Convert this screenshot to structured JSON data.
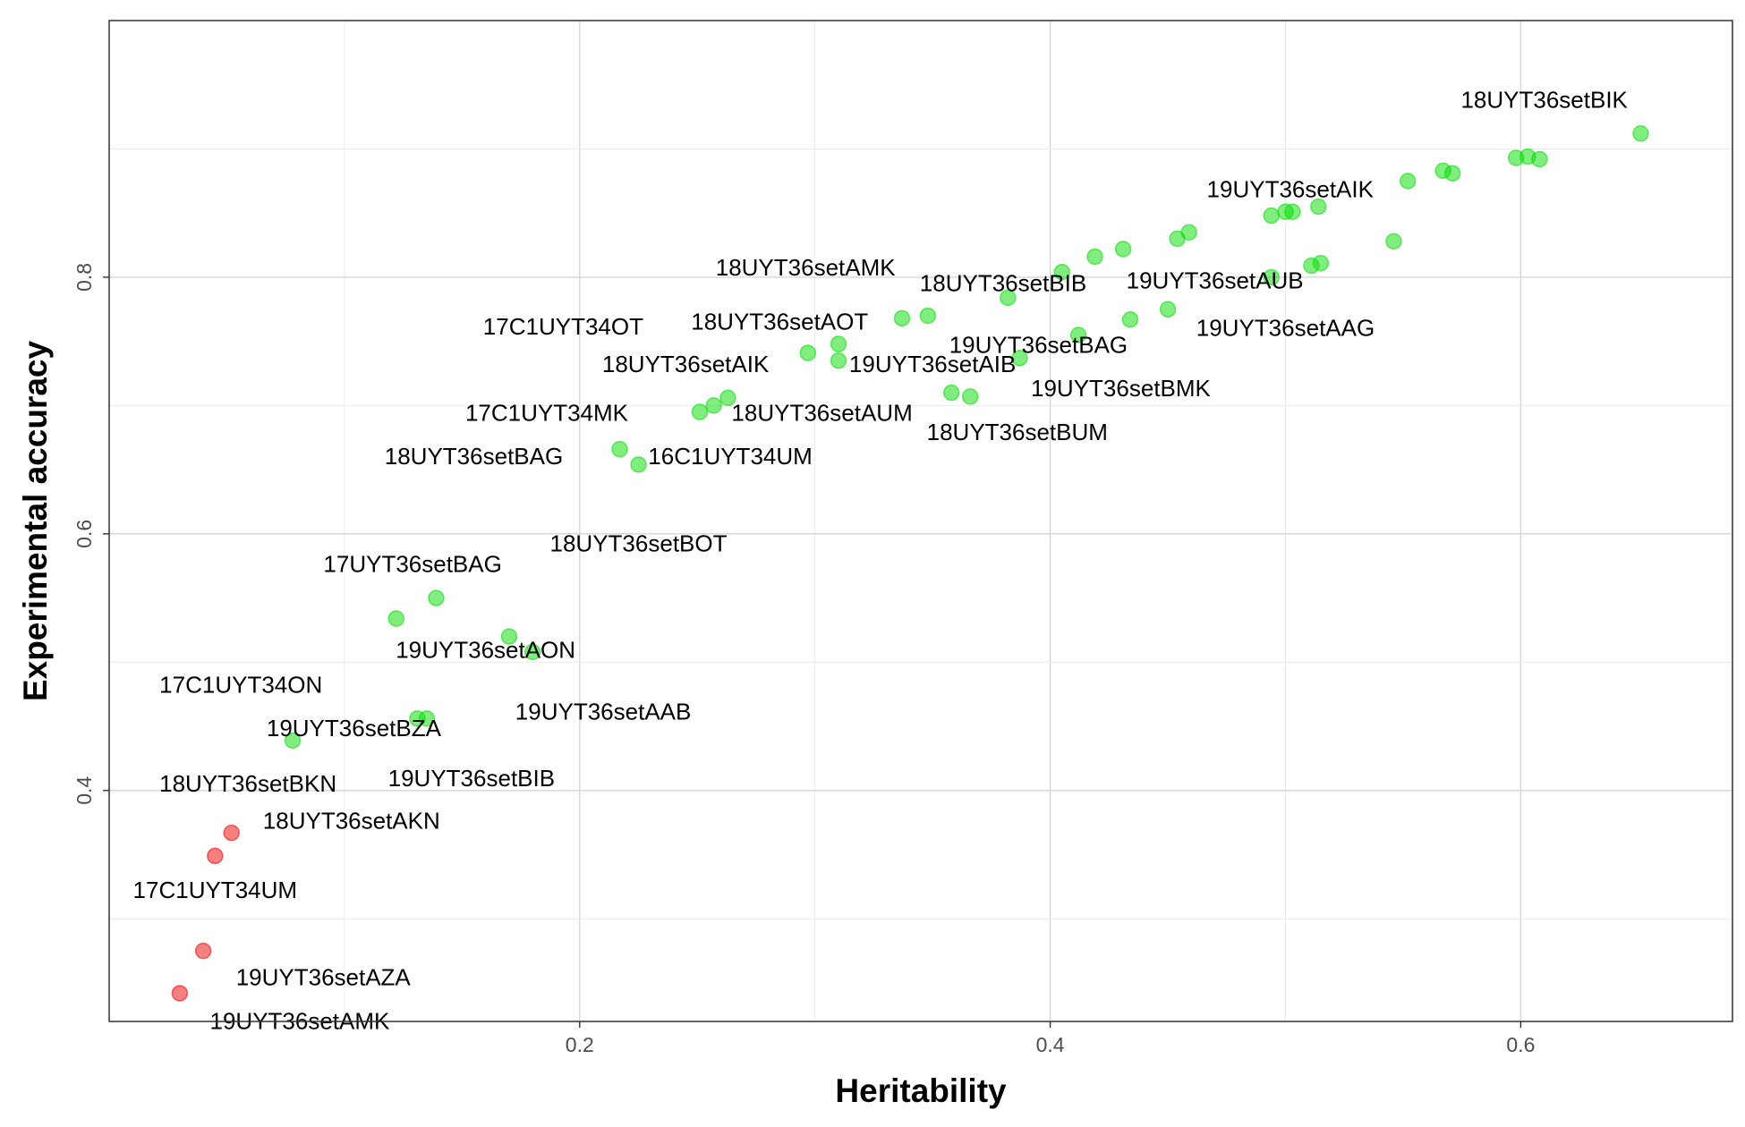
{
  "chart_data": {
    "type": "scatter",
    "xlabel": "Heritability",
    "ylabel": "Experimental accuracy",
    "xlim": [
      0.0,
      0.69
    ],
    "ylim": [
      0.22,
      1.0
    ],
    "x_ticks": [
      0.2,
      0.4,
      0.6
    ],
    "x_tick_labels": [
      "0.2",
      "0.4",
      "0.6"
    ],
    "y_ticks": [
      0.4,
      0.6,
      0.8
    ],
    "y_tick_labels": [
      "0.4",
      "0.6",
      "0.8"
    ],
    "grid": true,
    "legend": "none",
    "colors": {
      "high": "#00dd00",
      "low": "#ee0000"
    },
    "points": [
      {
        "x": 0.651,
        "y": 0.912,
        "group": "high"
      },
      {
        "x": 0.608,
        "y": 0.892,
        "group": "high"
      },
      {
        "x": 0.603,
        "y": 0.894,
        "group": "high"
      },
      {
        "x": 0.598,
        "y": 0.893,
        "group": "high"
      },
      {
        "x": 0.571,
        "y": 0.881,
        "group": "high"
      },
      {
        "x": 0.567,
        "y": 0.883,
        "group": "high"
      },
      {
        "x": 0.552,
        "y": 0.875,
        "group": "high"
      },
      {
        "x": 0.546,
        "y": 0.828,
        "group": "high"
      },
      {
        "x": 0.514,
        "y": 0.855,
        "group": "high"
      },
      {
        "x": 0.503,
        "y": 0.851,
        "group": "high"
      },
      {
        "x": 0.5,
        "y": 0.851,
        "group": "high"
      },
      {
        "x": 0.494,
        "y": 0.848,
        "group": "high"
      },
      {
        "x": 0.515,
        "y": 0.811,
        "group": "high"
      },
      {
        "x": 0.511,
        "y": 0.809,
        "group": "high"
      },
      {
        "x": 0.494,
        "y": 0.8,
        "group": "high"
      },
      {
        "x": 0.459,
        "y": 0.835,
        "group": "high"
      },
      {
        "x": 0.454,
        "y": 0.83,
        "group": "high"
      },
      {
        "x": 0.431,
        "y": 0.822,
        "group": "high"
      },
      {
        "x": 0.419,
        "y": 0.816,
        "group": "high"
      },
      {
        "x": 0.405,
        "y": 0.804,
        "group": "high"
      },
      {
        "x": 0.382,
        "y": 0.784,
        "group": "high"
      },
      {
        "x": 0.45,
        "y": 0.775,
        "group": "high"
      },
      {
        "x": 0.434,
        "y": 0.767,
        "group": "high"
      },
      {
        "x": 0.412,
        "y": 0.755,
        "group": "high"
      },
      {
        "x": 0.387,
        "y": 0.737,
        "group": "high"
      },
      {
        "x": 0.366,
        "y": 0.707,
        "group": "high"
      },
      {
        "x": 0.358,
        "y": 0.71,
        "group": "high"
      },
      {
        "x": 0.348,
        "y": 0.77,
        "group": "high"
      },
      {
        "x": 0.337,
        "y": 0.768,
        "group": "high"
      },
      {
        "x": 0.31,
        "y": 0.748,
        "group": "high"
      },
      {
        "x": 0.31,
        "y": 0.735,
        "group": "high"
      },
      {
        "x": 0.297,
        "y": 0.741,
        "group": "high"
      },
      {
        "x": 0.263,
        "y": 0.706,
        "group": "high"
      },
      {
        "x": 0.257,
        "y": 0.7,
        "group": "high"
      },
      {
        "x": 0.251,
        "y": 0.695,
        "group": "high"
      },
      {
        "x": 0.225,
        "y": 0.654,
        "group": "high"
      },
      {
        "x": 0.217,
        "y": 0.666,
        "group": "high"
      },
      {
        "x": 0.18,
        "y": 0.508,
        "group": "high"
      },
      {
        "x": 0.17,
        "y": 0.52,
        "group": "high"
      },
      {
        "x": 0.139,
        "y": 0.55,
        "group": "high"
      },
      {
        "x": 0.122,
        "y": 0.534,
        "group": "high"
      },
      {
        "x": 0.135,
        "y": 0.456,
        "group": "high"
      },
      {
        "x": 0.131,
        "y": 0.456,
        "group": "high"
      },
      {
        "x": 0.078,
        "y": 0.439,
        "group": "high"
      },
      {
        "x": 0.052,
        "y": 0.367,
        "group": "low"
      },
      {
        "x": 0.045,
        "y": 0.349,
        "group": "low"
      },
      {
        "x": 0.04,
        "y": 0.275,
        "group": "low"
      },
      {
        "x": 0.03,
        "y": 0.242,
        "group": "low"
      }
    ],
    "annotations": [
      {
        "text": "18UYT36setBIK",
        "x": 0.61,
        "y": 0.937
      },
      {
        "text": "19UYT36setAIK",
        "x": 0.502,
        "y": 0.867
      },
      {
        "text": "18UYT36setAMK",
        "x": 0.296,
        "y": 0.806
      },
      {
        "text": "18UYT36setBIB",
        "x": 0.38,
        "y": 0.794
      },
      {
        "text": "19UYT36setAUB",
        "x": 0.47,
        "y": 0.796
      },
      {
        "text": "17C1UYT34OT",
        "x": 0.193,
        "y": 0.76
      },
      {
        "text": "18UYT36setAOT",
        "x": 0.285,
        "y": 0.764
      },
      {
        "text": "19UYT36setAAG",
        "x": 0.5,
        "y": 0.759
      },
      {
        "text": "19UYT36setBAG",
        "x": 0.395,
        "y": 0.746
      },
      {
        "text": "18UYT36setAIK",
        "x": 0.245,
        "y": 0.731
      },
      {
        "text": "19UYT36setAIB",
        "x": 0.35,
        "y": 0.731
      },
      {
        "text": "19UYT36setBMK",
        "x": 0.43,
        "y": 0.712
      },
      {
        "text": "17C1UYT34MK",
        "x": 0.186,
        "y": 0.693
      },
      {
        "text": "18UYT36setAUM",
        "x": 0.303,
        "y": 0.693
      },
      {
        "text": "18UYT36setBUM",
        "x": 0.386,
        "y": 0.678
      },
      {
        "text": "18UYT36setBAG",
        "x": 0.155,
        "y": 0.659
      },
      {
        "text": "16C1UYT34UM",
        "x": 0.264,
        "y": 0.659
      },
      {
        "text": "18UYT36setBOT",
        "x": 0.225,
        "y": 0.591
      },
      {
        "text": "17UYT36setBAG",
        "x": 0.129,
        "y": 0.575
      },
      {
        "text": "19UYT36setAON",
        "x": 0.16,
        "y": 0.508
      },
      {
        "text": "17C1UYT34ON",
        "x": 0.056,
        "y": 0.481
      },
      {
        "text": "19UYT36setAAB",
        "x": 0.21,
        "y": 0.46
      },
      {
        "text": "19UYT36setBZA",
        "x": 0.104,
        "y": 0.447
      },
      {
        "text": "19UYT36setBIB",
        "x": 0.154,
        "y": 0.408
      },
      {
        "text": "18UYT36setBKN",
        "x": 0.059,
        "y": 0.404
      },
      {
        "text": "18UYT36setAKN",
        "x": 0.103,
        "y": 0.375
      },
      {
        "text": "17C1UYT34UM",
        "x": 0.045,
        "y": 0.321
      },
      {
        "text": "19UYT36setAZA",
        "x": 0.091,
        "y": 0.253
      },
      {
        "text": "19UYT36setAMK",
        "x": 0.081,
        "y": 0.219
      }
    ]
  }
}
